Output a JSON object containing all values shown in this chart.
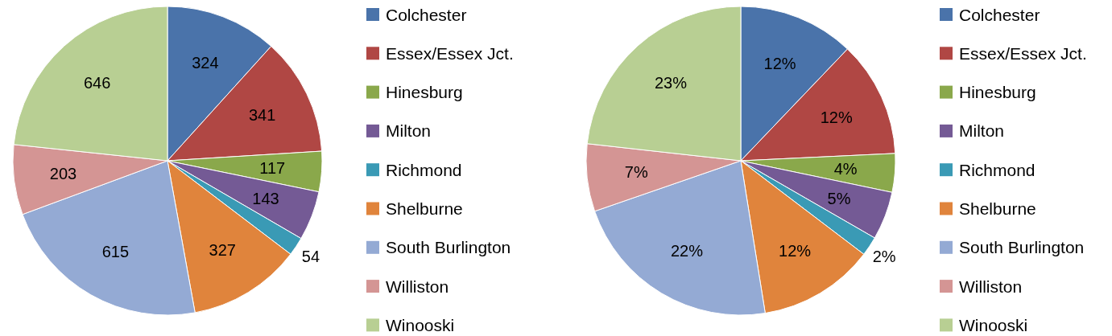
{
  "chart_data": [
    {
      "type": "pie",
      "categories": [
        "Colchester",
        "Essex/Essex Jct.",
        "Hinesburg",
        "Milton",
        "Richmond",
        "Shelburne",
        "South Burlington",
        "Williston",
        "Winooski"
      ],
      "values": [
        324,
        341,
        117,
        143,
        54,
        327,
        615,
        203,
        646
      ],
      "colors": [
        "#4a73aa",
        "#b04744",
        "#8aa84b",
        "#745a95",
        "#3a9ab5",
        "#e0843c",
        "#94aad4",
        "#d49594",
        "#b8cf93"
      ],
      "data_labels": true,
      "legend": "right"
    },
    {
      "type": "pie",
      "categories": [
        "Colchester",
        "Essex/Essex Jct.",
        "Hinesburg",
        "Milton",
        "Richmond",
        "Shelburne",
        "South Burlington",
        "Williston",
        "Winooski"
      ],
      "values": [
        12,
        12,
        4,
        5,
        2,
        12,
        22,
        7,
        23
      ],
      "colors": [
        "#4a73aa",
        "#b04744",
        "#8aa84b",
        "#745a95",
        "#3a9ab5",
        "#e0843c",
        "#94aad4",
        "#d49594",
        "#b8cf93"
      ],
      "value_labels": [
        "12%",
        "12%",
        "4%",
        "5%",
        "2%",
        "12%",
        "22%",
        "7%",
        "23%"
      ],
      "legend": "right"
    }
  ]
}
